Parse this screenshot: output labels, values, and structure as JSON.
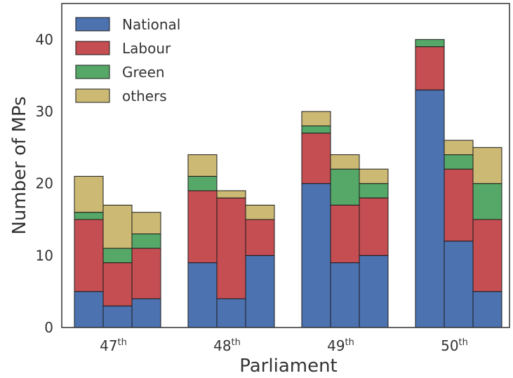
{
  "chart_data": {
    "type": "bar",
    "stacked": true,
    "groups": [
      {
        "label": "47",
        "suffix": "th"
      },
      {
        "label": "48",
        "suffix": "th"
      },
      {
        "label": "49",
        "suffix": "th"
      },
      {
        "label": "50",
        "suffix": "th"
      }
    ],
    "bars_per_group": 3,
    "series": [
      {
        "name": "National",
        "color": "#4C72B0",
        "values": [
          5,
          3,
          4,
          9,
          4,
          10,
          20,
          9,
          10,
          33,
          12,
          5
        ]
      },
      {
        "name": "Labour",
        "color": "#C44E52",
        "values": [
          10,
          6,
          7,
          10,
          14,
          5,
          7,
          8,
          8,
          6,
          10,
          10
        ]
      },
      {
        "name": "Green",
        "color": "#55A868",
        "values": [
          1,
          2,
          2,
          2,
          0,
          0,
          1,
          5,
          2,
          1,
          2,
          5
        ]
      },
      {
        "name": "others",
        "color": "#CCB974",
        "values": [
          5,
          6,
          3,
          3,
          1,
          2,
          2,
          2,
          2,
          0,
          2,
          5
        ]
      }
    ],
    "xlabel": "Parliament",
    "ylabel": "Number of MPs",
    "ylim": [
      0,
      45
    ],
    "yticks": [
      0,
      10,
      20,
      30,
      40
    ],
    "grid": false,
    "legend_position": "top-left"
  }
}
